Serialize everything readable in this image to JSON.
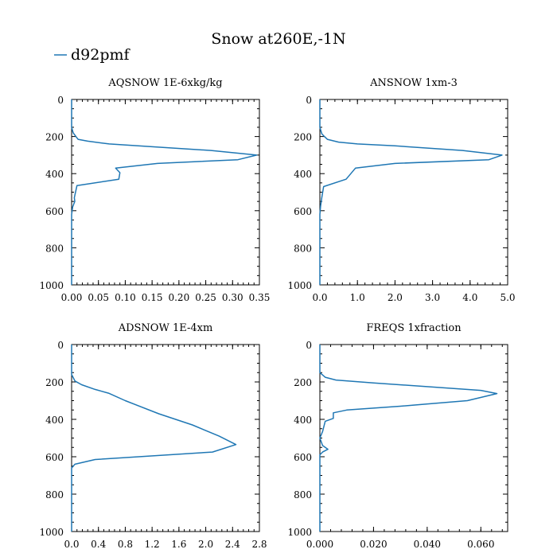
{
  "figure": {
    "title": "Snow at260E,-1N",
    "legend_label": "d92pmf",
    "series_color": "#1f77b4"
  },
  "chart_data": [
    {
      "type": "line",
      "title": "AQSNOW  1E-6xkg/kg",
      "xlim": [
        0,
        0.35
      ],
      "ylim": [
        1000,
        0
      ],
      "xticks": [
        "0.00",
        "0.05",
        "0.10",
        "0.15",
        "0.20",
        "0.25",
        "0.30",
        "0.35"
      ],
      "yticks": [
        "0",
        "200",
        "400",
        "600",
        "800",
        "1000"
      ],
      "series": [
        {
          "name": "d92pmf",
          "points": [
            [
              0,
              0
            ],
            [
              0,
              150
            ],
            [
              0.003,
              180
            ],
            [
              0.008,
              200
            ],
            [
              0.012,
              215
            ],
            [
              0.03,
              225
            ],
            [
              0.07,
              240
            ],
            [
              0.15,
              255
            ],
            [
              0.26,
              275
            ],
            [
              0.345,
              300
            ],
            [
              0.31,
              325
            ],
            [
              0.16,
              345
            ],
            [
              0.082,
              370
            ],
            [
              0.09,
              395
            ],
            [
              0.088,
              430
            ],
            [
              0.01,
              465
            ],
            [
              0.005,
              530
            ],
            [
              0.006,
              550
            ],
            [
              0.002,
              580
            ],
            [
              0,
              620
            ],
            [
              0,
              1000
            ]
          ]
        }
      ]
    },
    {
      "type": "line",
      "title": "ANSNOW  1xm-3",
      "xlim": [
        0,
        5.0
      ],
      "ylim": [
        1000,
        0
      ],
      "xticks": [
        "0.0",
        "1.0",
        "2.0",
        "3.0",
        "4.0",
        "5.0"
      ],
      "yticks": [
        "0",
        "200",
        "400",
        "600",
        "800",
        "1000"
      ],
      "series": [
        {
          "name": "d92pmf",
          "points": [
            [
              0,
              0
            ],
            [
              0,
              150
            ],
            [
              0.05,
              185
            ],
            [
              0.12,
              200
            ],
            [
              0.2,
              215
            ],
            [
              0.5,
              230
            ],
            [
              1.0,
              240
            ],
            [
              2.0,
              250
            ],
            [
              3.8,
              275
            ],
            [
              4.85,
              300
            ],
            [
              4.5,
              325
            ],
            [
              2.0,
              345
            ],
            [
              0.95,
              370
            ],
            [
              0.7,
              430
            ],
            [
              0.1,
              470
            ],
            [
              0.05,
              530
            ],
            [
              0.02,
              575
            ],
            [
              0,
              620
            ],
            [
              0,
              1000
            ]
          ]
        }
      ]
    },
    {
      "type": "line",
      "title": "ADSNOW  1E-4xm",
      "xlim": [
        0,
        2.8
      ],
      "ylim": [
        1000,
        0
      ],
      "xticks": [
        "0.0",
        "0.4",
        "0.8",
        "1.2",
        "1.6",
        "2.0",
        "2.4",
        "2.8"
      ],
      "yticks": [
        "0",
        "200",
        "400",
        "600",
        "800",
        "1000"
      ],
      "series": [
        {
          "name": "d92pmf",
          "points": [
            [
              0,
              0
            ],
            [
              0,
              160
            ],
            [
              0.05,
              195
            ],
            [
              0.15,
              215
            ],
            [
              0.35,
              240
            ],
            [
              0.55,
              260
            ],
            [
              0.8,
              300
            ],
            [
              1.3,
              370
            ],
            [
              1.8,
              430
            ],
            [
              2.2,
              490
            ],
            [
              2.45,
              535
            ],
            [
              2.1,
              575
            ],
            [
              0.35,
              615
            ],
            [
              0.05,
              640
            ],
            [
              0,
              660
            ],
            [
              0,
              1000
            ]
          ]
        }
      ]
    },
    {
      "type": "line",
      "title": "FREQS  1xfraction",
      "xlim": [
        0,
        0.07
      ],
      "ylim": [
        1000,
        0
      ],
      "xticks": [
        "0.000",
        "0.020",
        "0.040",
        "0.060"
      ],
      "yticks": [
        "0",
        "200",
        "400",
        "600",
        "800",
        "1000"
      ],
      "series": [
        {
          "name": "d92pmf",
          "points": [
            [
              0,
              0
            ],
            [
              0,
              150
            ],
            [
              0.002,
              175
            ],
            [
              0.006,
              190
            ],
            [
              0.02,
              205
            ],
            [
              0.06,
              245
            ],
            [
              0.066,
              262
            ],
            [
              0.055,
              300
            ],
            [
              0.03,
              330
            ],
            [
              0.01,
              350
            ],
            [
              0.005,
              365
            ],
            [
              0.005,
              395
            ],
            [
              0.002,
              410
            ],
            [
              0.001,
              465
            ],
            [
              0,
              500
            ],
            [
              0.001,
              540
            ],
            [
              0.003,
              560
            ],
            [
              0.001,
              575
            ],
            [
              0,
              590
            ],
            [
              0,
              1000
            ]
          ]
        }
      ]
    }
  ]
}
